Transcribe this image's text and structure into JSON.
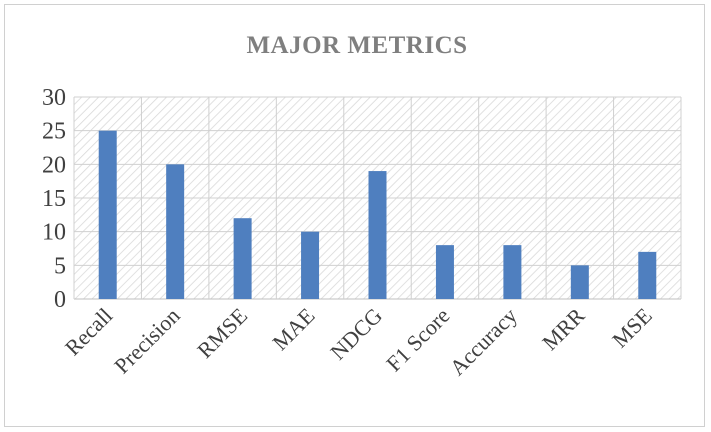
{
  "chart_data": {
    "type": "bar",
    "title": "MAJOR  METRICS",
    "categories": [
      "Recall",
      "Precision",
      "RMSE",
      "MAE",
      "NDCG",
      "F1 Score",
      "Accuracy",
      "MRR",
      "MSE"
    ],
    "values": [
      25,
      20,
      12,
      10,
      19,
      8,
      8,
      5,
      7
    ],
    "ylim": [
      0,
      30
    ],
    "yticks": [
      0,
      5,
      10,
      15,
      20,
      25,
      30
    ],
    "grid": true,
    "bar_color": "#4f7fbf",
    "legend": "none"
  }
}
